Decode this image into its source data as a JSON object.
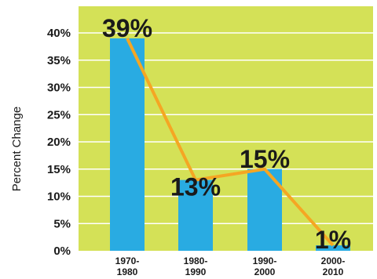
{
  "chart_data": {
    "type": "bar",
    "title": "",
    "xlabel": "",
    "ylabel": "Percent Change",
    "categories": [
      [
        "1970-",
        "1980"
      ],
      [
        "1980-",
        "1990"
      ],
      [
        "1990-",
        "2000"
      ],
      [
        "2000-",
        "2010"
      ]
    ],
    "values": [
      39,
      13,
      15,
      1
    ],
    "data_labels": [
      "39%",
      "13%",
      "15%",
      "1%"
    ],
    "ylim": [
      0,
      40
    ],
    "y_ticks": [
      0,
      5,
      10,
      15,
      20,
      25,
      30,
      35,
      40
    ],
    "y_tick_labels": [
      "0%",
      "5%",
      "10%",
      "15%",
      "20%",
      "25%",
      "30%",
      "35%",
      "40%"
    ],
    "overlay": "line connecting bar tops",
    "grid": true,
    "legend": "none",
    "colors": {
      "plot_background": "#d4e157",
      "bar": "#29abe2",
      "line": "#f5a623",
      "grid": "#ffffff"
    }
  }
}
